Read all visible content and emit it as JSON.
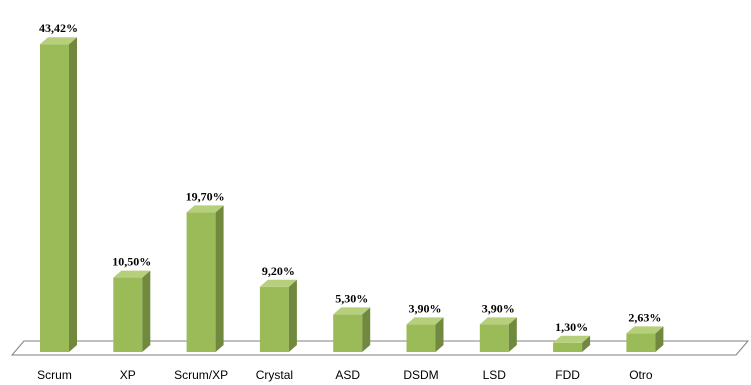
{
  "chart_data": {
    "type": "bar",
    "categories": [
      "Scrum",
      "XP",
      "Scrum/XP",
      "Crystal",
      "ASD",
      "DSDM",
      "LSD",
      "FDD",
      "Otro"
    ],
    "values": [
      43.42,
      10.5,
      19.7,
      9.2,
      5.3,
      3.9,
      3.9,
      1.3,
      2.63
    ],
    "data_labels": [
      "43,42%",
      "10,50%",
      "19,70%",
      "9,20%",
      "5,30%",
      "3,90%",
      "3,90%",
      "1,30%",
      "2,63%"
    ],
    "title": "",
    "xlabel": "",
    "ylabel": "",
    "ylim": [
      0,
      45
    ],
    "grid": false,
    "legend": "none",
    "three_d": true,
    "colors": {
      "bar_front": "#9bbb59",
      "bar_top": "#b5cf7a",
      "bar_side": "#71893f",
      "floor_stroke": "#808080"
    }
  }
}
